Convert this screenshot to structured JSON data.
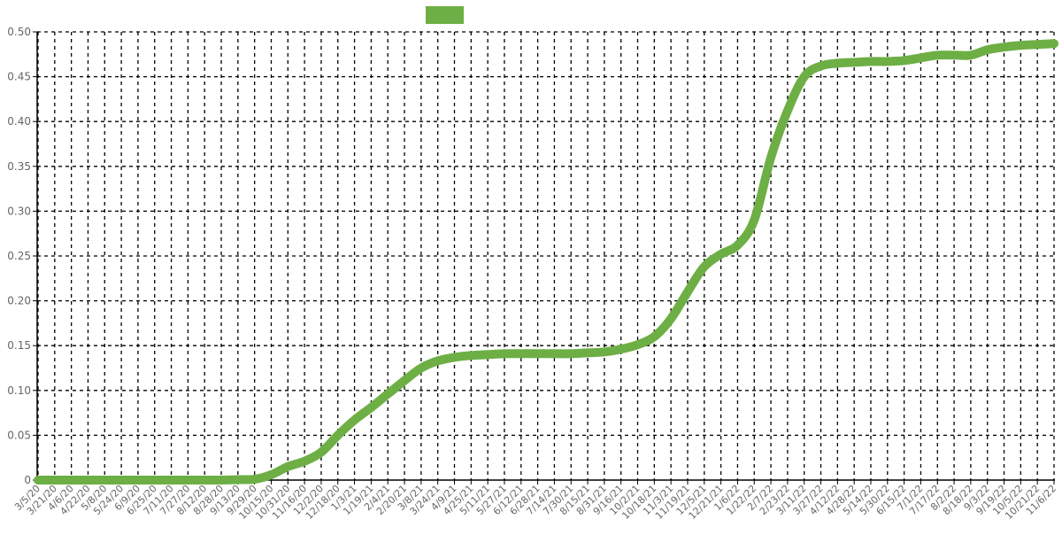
{
  "chart_data": {
    "type": "line",
    "title": "",
    "xlabel": "",
    "ylabel": "",
    "ylim": [
      0,
      0.5
    ],
    "y_ticks": [
      "0",
      "0.05",
      "0.10",
      "0.15",
      "0.20",
      "0.25",
      "0.30",
      "0.35",
      "0.40",
      "0.45",
      "0.50"
    ],
    "x_ticks": [
      "3/5/20",
      "3/21/20",
      "4/6/20",
      "4/22/20",
      "5/8/20",
      "5/24/20",
      "6/9/20",
      "6/25/20",
      "7/11/20",
      "7/27/20",
      "8/12/20",
      "8/28/20",
      "9/13/20",
      "9/29/20",
      "10/15/20",
      "10/31/20",
      "11/16/20",
      "12/2/20",
      "12/18/20",
      "1/3/21",
      "1/19/21",
      "2/4/21",
      "2/20/21",
      "3/8/21",
      "3/24/21",
      "4/9/21",
      "4/25/21",
      "5/11/21",
      "5/27/21",
      "6/12/21",
      "6/28/21",
      "7/14/21",
      "7/30/21",
      "8/15/21",
      "8/31/21",
      "9/16/21",
      "10/2/21",
      "10/18/21",
      "11/3/21",
      "11/19/21",
      "12/5/21",
      "12/21/21",
      "1/6/22",
      "1/22/22",
      "2/7/22",
      "2/23/22",
      "3/11/22",
      "3/27/22",
      "4/12/22",
      "4/28/22",
      "5/14/22",
      "5/30/22",
      "6/15/22",
      "7/1/22",
      "7/17/22",
      "8/2/22",
      "8/18/22",
      "9/3/22",
      "9/19/22",
      "10/5/22",
      "10/21/22",
      "11/6/22"
    ],
    "grid": true,
    "legend_position": "top-center",
    "series": [
      {
        "color": "#6daf45",
        "x": [
          "3/5/20",
          "3/21/20",
          "4/6/20",
          "4/22/20",
          "5/8/20",
          "5/24/20",
          "6/9/20",
          "6/25/20",
          "7/11/20",
          "7/27/20",
          "8/12/20",
          "8/28/20",
          "9/13/20",
          "9/29/20",
          "10/15/20",
          "10/31/20",
          "11/16/20",
          "12/2/20",
          "12/18/20",
          "1/3/21",
          "1/19/21",
          "2/4/21",
          "2/20/21",
          "3/8/21",
          "3/24/21",
          "4/9/21",
          "4/25/21",
          "5/11/21",
          "5/27/21",
          "6/12/21",
          "6/28/21",
          "7/14/21",
          "7/30/21",
          "8/15/21",
          "8/31/21",
          "9/16/21",
          "10/2/21",
          "10/18/21",
          "11/3/21",
          "11/19/21",
          "12/5/21",
          "12/21/21",
          "1/6/22",
          "1/22/22",
          "2/7/22",
          "2/23/22",
          "3/11/22",
          "3/27/22",
          "4/12/22",
          "4/28/22",
          "5/14/22",
          "5/30/22",
          "6/15/22",
          "7/1/22",
          "7/17/22",
          "8/2/22",
          "8/18/22",
          "9/3/22",
          "9/19/22",
          "10/5/22",
          "10/21/22",
          "11/6/22"
        ],
        "values": [
          0,
          0,
          0,
          0,
          0,
          0,
          0,
          0,
          0,
          0,
          0,
          0,
          0.0005,
          0.001,
          0.006,
          0.015,
          0.021,
          0.031,
          0.05,
          0.067,
          0.081,
          0.096,
          0.111,
          0.125,
          0.133,
          0.137,
          0.139,
          0.14,
          0.141,
          0.141,
          0.141,
          0.141,
          0.141,
          0.142,
          0.143,
          0.146,
          0.151,
          0.16,
          0.18,
          0.21,
          0.238,
          0.252,
          0.262,
          0.29,
          0.36,
          0.412,
          0.45,
          0.462,
          0.465,
          0.466,
          0.467,
          0.467,
          0.468,
          0.471,
          0.474,
          0.474,
          0.474,
          0.48,
          0.483,
          0.485,
          0.486,
          0.487
        ]
      }
    ]
  }
}
